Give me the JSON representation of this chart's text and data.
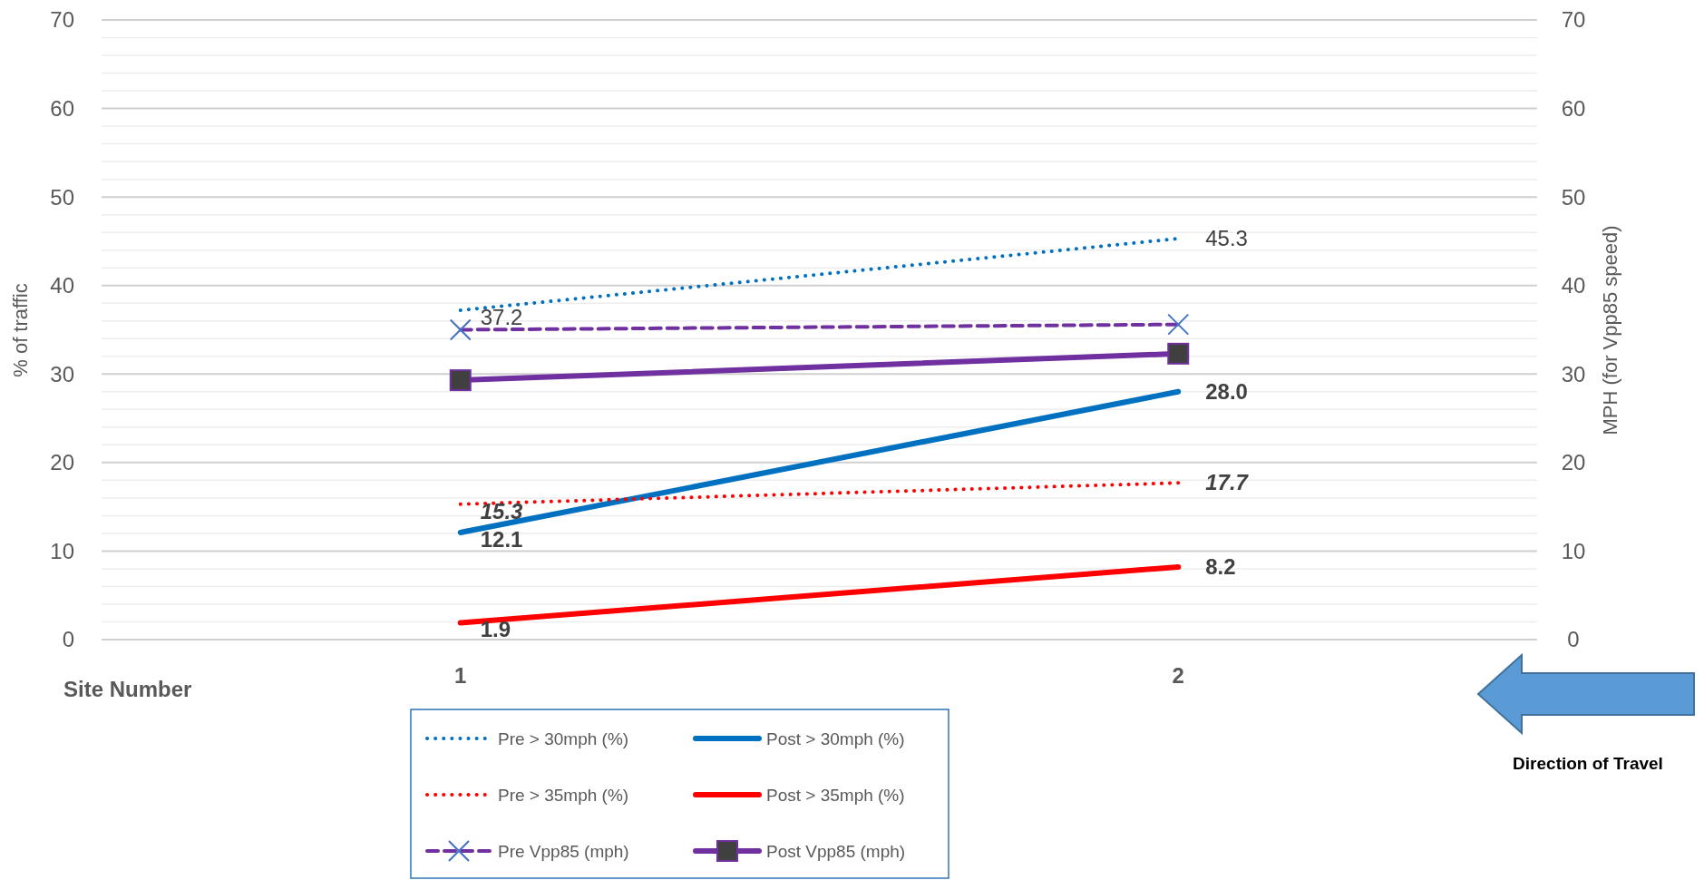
{
  "chart_data": {
    "type": "line",
    "xlabel": "Site Number",
    "ylabel": "% of traffic",
    "y2label": "MPH (for Vpp85 speed)",
    "categories": [
      "1",
      "2"
    ],
    "series": [
      {
        "name": "Pre > 30mph (%)",
        "color": "#0070c0",
        "values": [
          37.2,
          45.3
        ],
        "line_style": "dotted",
        "marker": "none",
        "value_labels": [
          "37.2",
          "45.3"
        ]
      },
      {
        "name": "Post > 30mph (%)",
        "color": "#0070c0",
        "values": [
          12.1,
          28.0
        ],
        "line_style": "solid",
        "marker": "none",
        "value_labels": [
          "12.1",
          "28.0"
        ]
      },
      {
        "name": "Pre > 35mph (%)",
        "color": "#ff0000",
        "values": [
          15.3,
          17.7
        ],
        "line_style": "dotted",
        "marker": "none",
        "value_labels": [
          "15.3",
          "17.7"
        ]
      },
      {
        "name": "Post > 35mph (%)",
        "color": "#ff0000",
        "values": [
          1.9,
          8.2
        ],
        "line_style": "solid",
        "marker": "none",
        "value_labels": [
          "1.9",
          "8.2"
        ]
      },
      {
        "name": "Pre Vpp85 (mph)",
        "color": "#7030a0",
        "values": [
          35.0,
          35.6
        ],
        "line_style": "dashed",
        "marker": "cross"
      },
      {
        "name": "Post Vpp85 (mph)",
        "color": "#7030a0",
        "values": [
          29.3,
          32.3
        ],
        "line_style": "solid",
        "marker": "square"
      }
    ],
    "ylim": [
      0,
      70
    ],
    "yticks": [
      0,
      {
        "value": 2,
        "label": null
      },
      {
        "value": 4,
        "label": null
      },
      {
        "value": 6,
        "label": null
      },
      {
        "value": 8,
        "label": null
      },
      10,
      {
        "value": 12,
        "label": null
      },
      {
        "value": 14,
        "label": null
      },
      {
        "value": 16,
        "label": null
      },
      {
        "value": 18,
        "label": null
      },
      20,
      {
        "value": 22,
        "label": null
      },
      {
        "value": 24,
        "label": null
      },
      {
        "value": 26,
        "label": null
      },
      {
        "value": 28,
        "label": null
      },
      30,
      {
        "value": 32,
        "label": null
      },
      {
        "value": 34,
        "label": null
      },
      {
        "value": 36,
        "label": null
      },
      {
        "value": 38,
        "label": null
      },
      40,
      {
        "value": 42,
        "label": null
      },
      {
        "value": 44,
        "label": null
      },
      {
        "value": 46,
        "label": null
      },
      {
        "value": 48,
        "label": null
      },
      50,
      {
        "value": 52,
        "label": null
      },
      {
        "value": 54,
        "label": null
      },
      {
        "value": 56,
        "label": null
      },
      {
        "value": 58,
        "label": null
      },
      60,
      {
        "value": 62,
        "label": null
      },
      {
        "value": 64,
        "label": null
      },
      {
        "value": 66,
        "label": null
      },
      {
        "value": 68,
        "label": null
      },
      70
    ],
    "y2lim": [
      0,
      70
    ],
    "y2ticks": [
      0,
      10,
      20,
      30,
      40,
      50,
      60,
      70
    ],
    "grid": "y",
    "legend": "bottom",
    "annotations": [
      "Direction of Travel"
    ]
  }
}
